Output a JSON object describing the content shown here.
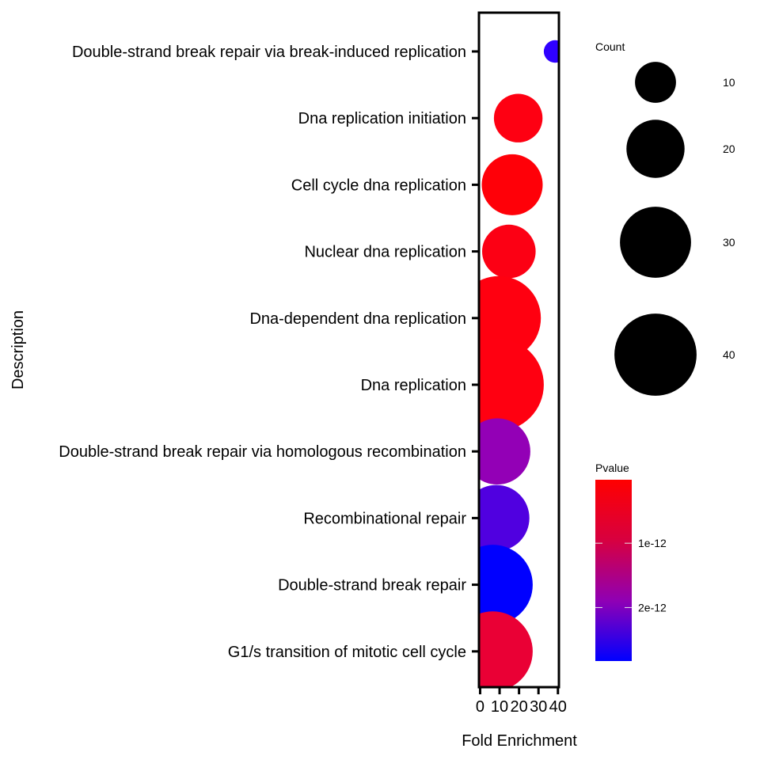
{
  "chart_data": {
    "type": "scatter",
    "xlabel": "Fold Enrichment",
    "ylabel": "Description",
    "xlim": [
      -0.6,
      40.5
    ],
    "x_ticks": [
      0,
      10,
      20,
      30,
      40
    ],
    "x_tick_labels": [
      "0",
      "10",
      "20",
      "30",
      "40"
    ],
    "categories": [
      "Double-strand break repair via break-induced replication",
      "Dna replication initiation",
      "Cell cycle dna replication",
      "Nuclear dna replication",
      "Dna-dependent dna replication",
      "Dna replication",
      "Double-strand break repair via homologous recombination",
      "Recombinational repair",
      "Double-strand break repair",
      "G1/s transition of mitotic cell cycle"
    ],
    "points": [
      {
        "term": "Double-strand break repair via break-induced replication",
        "fold_enrichment": 38.5,
        "count": 3,
        "color": "#2f00ff"
      },
      {
        "term": "Dna replication initiation",
        "fold_enrichment": 19.6,
        "count": 14,
        "color": "#fe0012"
      },
      {
        "term": "Cell cycle dna replication",
        "fold_enrichment": 16.5,
        "count": 22,
        "color": "#ff0008"
      },
      {
        "term": "Nuclear dna replication",
        "fold_enrichment": 14.8,
        "count": 17,
        "color": "#fc0014"
      },
      {
        "term": "Dna-dependent dna replication",
        "fold_enrichment": 9.6,
        "count": 42,
        "color": "#ff0010"
      },
      {
        "term": "Dna replication",
        "fold_enrichment": 8.9,
        "count": 51,
        "color": "#ff0011"
      },
      {
        "term": "Double-strand break repair via homologous recombination",
        "fold_enrichment": 8.8,
        "count": 26,
        "color": "#9300b6"
      },
      {
        "term": "Recombinational repair",
        "fold_enrichment": 8.3,
        "count": 26,
        "color": "#5000e0"
      },
      {
        "term": "Double-strand break repair",
        "fold_enrichment": 6.5,
        "count": 38,
        "color": "#0000ff"
      },
      {
        "term": "G1/s transition of mitotic cell cycle",
        "fold_enrichment": 6.5,
        "count": 38,
        "color": "#ea0035"
      }
    ],
    "legend_count": {
      "title": "Count",
      "items": [
        {
          "label": "10",
          "count": 10
        },
        {
          "label": "20",
          "count": 20
        },
        {
          "label": "30",
          "count": 30
        },
        {
          "label": "40",
          "count": 40
        }
      ]
    },
    "legend_pvalue": {
      "title": "Pvalue",
      "colors": [
        "#ff0000",
        "#d8003f",
        "#8f00b5",
        "#0000ff"
      ],
      "ticks": [
        {
          "label": "1e-12",
          "fraction": 0.35
        },
        {
          "label": "2e-12",
          "fraction": 0.705
        }
      ]
    },
    "grid": false,
    "legend_position": "right"
  }
}
